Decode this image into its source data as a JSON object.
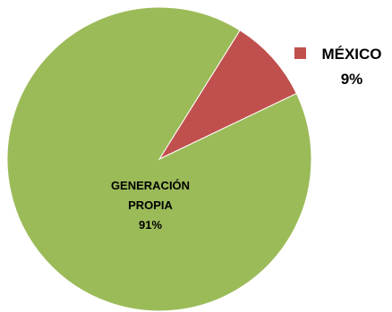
{
  "chart_data": {
    "type": "pie",
    "slices": [
      {
        "name": "MÉXICO",
        "label_lines": [
          "MÉXICO",
          "9%"
        ],
        "value": 9,
        "color": "#C0504D"
      },
      {
        "name": "GENERACIÓN PROPIA",
        "label_lines": [
          "GENERACIÓN",
          "PROPIA",
          "91%"
        ],
        "value": 91,
        "color": "#9BBB59"
      }
    ],
    "legend": "none",
    "label_placement": "MÉXICO label outside top-right with color marker; GENERACIÓN PROPIA label inside slice"
  },
  "colors": {
    "background": "#FFFFFF",
    "slice_edge": "#FFFFFF"
  }
}
